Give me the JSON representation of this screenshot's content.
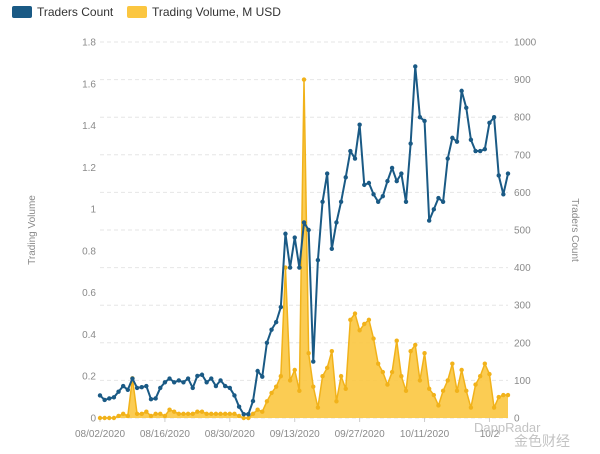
{
  "colors": {
    "traders": "#1a5a85",
    "volume_fill": "#fbc640",
    "volume_line": "#f1b21a",
    "grid": "#e6e6e6",
    "tick": "#8a8a8a"
  },
  "legend": {
    "traders_label": "Traders Count",
    "volume_label": "Trading Volume, M USD"
  },
  "chart_data": {
    "type": "line",
    "xlabel": "",
    "ylabel_left": "Trading Volume",
    "ylabel_right": "Traders Count",
    "ylim_left": [
      0,
      1.8
    ],
    "ylim_right": [
      0,
      1000
    ],
    "left_ticks": [
      "0",
      "0.2",
      "0.4",
      "0.6",
      "0.8",
      "1",
      "1.2",
      "1.4",
      "1.6",
      "1.8"
    ],
    "right_ticks": [
      "0",
      "100",
      "200",
      "300",
      "400",
      "500",
      "600",
      "700",
      "800",
      "900",
      "1000"
    ],
    "x_tick_labels": [
      "08/02/2020",
      "08/16/2020",
      "08/30/2020",
      "09/13/2020",
      "09/27/2020",
      "10/11/2020",
      "10/2"
    ],
    "x_tick_index": [
      0,
      14,
      28,
      42,
      56,
      70,
      84
    ],
    "grid": true,
    "legend_position": "top-left",
    "series": [
      {
        "name": "Traders Count",
        "axis": "right",
        "type": "line",
        "values": [
          60,
          48,
          52,
          55,
          70,
          85,
          75,
          105,
          80,
          82,
          85,
          50,
          52,
          80,
          95,
          105,
          95,
          100,
          95,
          105,
          80,
          112,
          115,
          95,
          105,
          85,
          100,
          85,
          80,
          60,
          30,
          10,
          10,
          45,
          125,
          110,
          200,
          235,
          255,
          295,
          490,
          400,
          480,
          400,
          520,
          500,
          150,
          420,
          575,
          650,
          450,
          520,
          575,
          640,
          710,
          690,
          780,
          620,
          625,
          595,
          575,
          590,
          630,
          665,
          630,
          650,
          575,
          730,
          935,
          800,
          790,
          525,
          555,
          585,
          575,
          690,
          745,
          735,
          870,
          825,
          740,
          710,
          710,
          715,
          785,
          800,
          645,
          595,
          650
        ]
      },
      {
        "name": "Trading Volume, M USD",
        "axis": "left",
        "type": "area",
        "values": [
          0,
          0,
          0,
          0,
          0.01,
          0.02,
          0.01,
          0.19,
          0.02,
          0.02,
          0.03,
          0.01,
          0.02,
          0.02,
          0.01,
          0.04,
          0.03,
          0.02,
          0.02,
          0.02,
          0.02,
          0.03,
          0.03,
          0.02,
          0.02,
          0.02,
          0.02,
          0.02,
          0.02,
          0.02,
          0.01,
          0,
          0,
          0.02,
          0.04,
          0.03,
          0.08,
          0.12,
          0.15,
          0.2,
          0.72,
          0.18,
          0.23,
          0.13,
          1.62,
          0.31,
          0.15,
          0.05,
          0.2,
          0.24,
          0.32,
          0.08,
          0.2,
          0.14,
          0.47,
          0.5,
          0.42,
          0.45,
          0.47,
          0.38,
          0.26,
          0.22,
          0.16,
          0.22,
          0.37,
          0.2,
          0.13,
          0.32,
          0.35,
          0.18,
          0.31,
          0.14,
          0.11,
          0.06,
          0.13,
          0.18,
          0.26,
          0.13,
          0.23,
          0.13,
          0.05,
          0.16,
          0.2,
          0.26,
          0.21,
          0.05,
          0.1,
          0.11,
          0.11
        ]
      }
    ]
  },
  "watermark": {
    "line1": "DappRadar",
    "line2": "金色财经"
  }
}
